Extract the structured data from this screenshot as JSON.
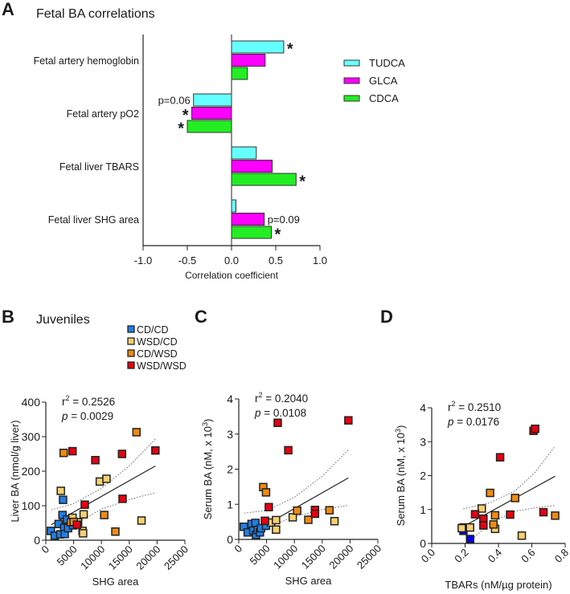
{
  "panels": {
    "A": "A",
    "B": "B",
    "C": "C",
    "D": "D"
  },
  "chart_data": [
    {
      "type": "bar",
      "orientation": "horizontal",
      "title": "Fetal BA correlations",
      "xlabel": "Correlation coefficient",
      "xlim": [
        -1.0,
        1.0
      ],
      "xticks": [
        "-1.0",
        "-0.5",
        "0.0",
        "0.5",
        "1.0"
      ],
      "xtick_values": [
        -1.0,
        -0.5,
        0.0,
        0.5,
        1.0
      ],
      "categories": [
        "Fetal artery hemoglobin",
        "Fetal artery pO2",
        "Fetal liver TBARS",
        "Fetal liver SHG area"
      ],
      "series": [
        {
          "name": "TUDCA",
          "color": "#66ffff",
          "values": [
            0.59,
            -0.43,
            0.28,
            0.05
          ]
        },
        {
          "name": "GLCA",
          "color": "#ff00ff",
          "values": [
            0.38,
            -0.45,
            0.46,
            0.37
          ]
        },
        {
          "name": "CDCA",
          "color": "#22ee22",
          "values": [
            0.18,
            -0.5,
            0.73,
            0.45
          ]
        }
      ],
      "annotations": [
        {
          "category": 0,
          "series": 0,
          "text": "*"
        },
        {
          "category": 1,
          "series": 0,
          "text": "p=0.06"
        },
        {
          "category": 1,
          "series": 1,
          "text": "*"
        },
        {
          "category": 1,
          "series": 2,
          "text": "*"
        },
        {
          "category": 2,
          "series": 2,
          "text": "*"
        },
        {
          "category": 3,
          "series": 1,
          "text": "p=0.09"
        },
        {
          "category": 3,
          "series": 2,
          "text": "*"
        }
      ],
      "legend": "right"
    },
    {
      "type": "scatter",
      "title": "Juveniles",
      "xlabel": "SHG area",
      "ylabel": "Liver BA (nmol/g liver)",
      "xlim": [
        0,
        25000
      ],
      "ylim": [
        0,
        400
      ],
      "xticks": [
        0,
        5000,
        10000,
        15000,
        20000,
        25000
      ],
      "yticks": [
        0,
        100,
        200,
        300,
        400
      ],
      "stats": {
        "r_label": "r",
        "r_sup": "2",
        "r_value": "= 0.2526",
        "p_label": "p",
        "p_value": "= 0.0029"
      },
      "legend_entries": [
        {
          "name": "CD/CD",
          "color": "#1f7fe8"
        },
        {
          "name": "WSD/CD",
          "color": "#f8d070"
        },
        {
          "name": "CD/WSD",
          "color": "#f08a10"
        },
        {
          "name": "WSD/WSD",
          "color": "#e80010"
        }
      ],
      "groups": [
        {
          "name": "CD/CD",
          "color": "#1f7fe8",
          "points": [
            [
              900,
              27
            ],
            [
              1600,
              13
            ],
            [
              2300,
              47
            ],
            [
              2600,
              17
            ],
            [
              3000,
              73
            ],
            [
              3100,
              117
            ],
            [
              3300,
              36
            ],
            [
              3400,
              18
            ],
            [
              3800,
              60
            ],
            [
              4000,
              35
            ],
            [
              4900,
              43
            ]
          ]
        },
        {
          "name": "WSD/CD",
          "color": "#f8d070",
          "points": [
            [
              2700,
              143
            ],
            [
              4800,
              65
            ],
            [
              5800,
              52
            ],
            [
              6600,
              27
            ],
            [
              6700,
              20
            ],
            [
              6800,
              75
            ],
            [
              9700,
              170
            ],
            [
              10900,
              178
            ],
            [
              17200,
              57
            ]
          ]
        },
        {
          "name": "CD/WSD",
          "color": "#f08a10",
          "points": [
            [
              3200,
              253
            ],
            [
              4500,
              52
            ],
            [
              5000,
              53
            ],
            [
              10500,
              73
            ],
            [
              12500,
              25
            ],
            [
              16300,
              313
            ]
          ]
        },
        {
          "name": "WSD/WSD",
          "color": "#e80010",
          "points": [
            [
              4800,
              258
            ],
            [
              5600,
              45
            ],
            [
              7000,
              103
            ],
            [
              8900,
              232
            ],
            [
              13700,
              250
            ],
            [
              13800,
              120
            ],
            [
              19700,
              260
            ]
          ]
        }
      ],
      "fit": [
        [
          1000,
          45
        ],
        [
          19700,
          215
        ]
      ],
      "ci_upper": [
        [
          1000,
          88
        ],
        [
          5000,
          106
        ],
        [
          10000,
          150
        ],
        [
          15000,
          215
        ],
        [
          19700,
          293
        ]
      ],
      "ci_lower": [
        [
          1500,
          5
        ],
        [
          5000,
          45
        ],
        [
          10000,
          90
        ],
        [
          15000,
          118
        ],
        [
          19700,
          138
        ]
      ]
    },
    {
      "type": "scatter",
      "xlabel": "SHG area",
      "ylabel": "Serum BA (nM, x 10",
      "ylabel_sup": "3",
      "ylabel_end": ")",
      "xlim": [
        0,
        25000
      ],
      "ylim": [
        0,
        4
      ],
      "xticks": [
        0,
        5000,
        10000,
        15000,
        20000,
        25000
      ],
      "yticks": [
        0,
        1,
        2,
        3,
        4
      ],
      "stats": {
        "r_label": "r",
        "r_sup": "2",
        "r_value": "= 0.2040",
        "p_label": "p",
        "p_value": "= 0.0108"
      },
      "groups": [
        {
          "name": "CD/CD",
          "color": "#1f7fe8",
          "points": [
            [
              900,
              0.36
            ],
            [
              1600,
              0.2
            ],
            [
              2300,
              0.44
            ],
            [
              2600,
              0.25
            ],
            [
              3000,
              0.47
            ],
            [
              3100,
              0.13
            ],
            [
              3400,
              0.27
            ],
            [
              3800,
              0.2
            ],
            [
              4000,
              0.32
            ],
            [
              4900,
              0.39
            ]
          ]
        },
        {
          "name": "WSD/CD",
          "color": "#f8d070",
          "points": [
            [
              5800,
              0.48
            ],
            [
              6700,
              0.55
            ],
            [
              6700,
              0.28
            ],
            [
              9700,
              0.63
            ],
            [
              17200,
              0.52
            ]
          ]
        },
        {
          "name": "CD/WSD",
          "color": "#f08a10",
          "points": [
            [
              4400,
              1.49
            ],
            [
              4900,
              1.34
            ],
            [
              10500,
              0.82
            ],
            [
              12500,
              0.56
            ],
            [
              16300,
              0.83
            ]
          ]
        },
        {
          "name": "WSD/WSD",
          "color": "#e80010",
          "points": [
            [
              4700,
              0.53
            ],
            [
              5400,
              0.92
            ],
            [
              7000,
              3.32
            ],
            [
              8900,
              2.54
            ],
            [
              13700,
              0.84
            ],
            [
              13700,
              0.73
            ],
            [
              19700,
              3.39
            ]
          ]
        }
      ],
      "fit": [
        [
          3000,
          0.25
        ],
        [
          19700,
          1.75
        ]
      ],
      "ci_upper": [
        [
          1000,
          0.75
        ],
        [
          5000,
          0.82
        ],
        [
          10000,
          1.2
        ],
        [
          15000,
          1.8
        ],
        [
          19700,
          2.55
        ]
      ],
      "ci_lower": [
        [
          3000,
          0.0
        ],
        [
          6000,
          0.4
        ],
        [
          10000,
          0.65
        ],
        [
          15000,
          0.85
        ],
        [
          19700,
          0.97
        ]
      ]
    },
    {
      "type": "scatter",
      "xlabel": "TBARs (nM/µg protein)",
      "ylabel": "Serum BA (nM, x 10",
      "ylabel_sup": "3",
      "ylabel_end": ")",
      "xlim": [
        0,
        0.8
      ],
      "ylim": [
        0,
        4
      ],
      "xticks": [
        "0.0",
        "0.2",
        "0.4",
        "0.6",
        "0.8"
      ],
      "xtick_values": [
        0,
        0.2,
        0.4,
        0.6,
        0.8
      ],
      "yticks": [
        0,
        1,
        2,
        3,
        4
      ],
      "stats": {
        "r_label": "r",
        "r_sup": "2",
        "r_value": "= 0.2510",
        "p_label": "p",
        "p_value": "= 0.0176"
      },
      "groups": [
        {
          "name": "CD/CD",
          "color": "#0000ee",
          "points": [
            [
              0.19,
              0.47
            ],
            [
              0.19,
              0.37
            ],
            [
              0.23,
              0.13
            ]
          ]
        },
        {
          "name": "WSD/CD",
          "color": "#f8d070",
          "points": [
            [
              0.18,
              0.45
            ],
            [
              0.23,
              0.47
            ],
            [
              0.3,
              1.03
            ],
            [
              0.38,
              0.43
            ],
            [
              0.54,
              0.23
            ]
          ]
        },
        {
          "name": "CD/WSD",
          "color": "#f08a10",
          "points": [
            [
              0.35,
              1.49
            ],
            [
              0.37,
              0.56
            ],
            [
              0.38,
              0.83
            ],
            [
              0.5,
              1.34
            ],
            [
              0.74,
              0.82
            ]
          ]
        },
        {
          "name": "WSD/WSD",
          "color": "#e80010",
          "points": [
            [
              0.26,
              0.86
            ],
            [
              0.31,
              0.73
            ],
            [
              0.31,
              0.53
            ],
            [
              0.41,
              2.54
            ],
            [
              0.47,
              0.85
            ],
            [
              0.61,
              3.32
            ],
            [
              0.62,
              3.38
            ],
            [
              0.67,
              0.92
            ]
          ]
        }
      ],
      "fit": [
        [
          0.19,
          0.5
        ],
        [
          0.74,
          1.98
        ]
      ],
      "ci_upper": [
        [
          0.19,
          1.02
        ],
        [
          0.35,
          1.2
        ],
        [
          0.5,
          1.55
        ],
        [
          0.62,
          2.1
        ],
        [
          0.74,
          2.87
        ]
      ],
      "ci_lower": [
        [
          0.23,
          0.07
        ],
        [
          0.35,
          0.6
        ],
        [
          0.5,
          0.95
        ],
        [
          0.62,
          1.05
        ],
        [
          0.74,
          1.12
        ]
      ]
    }
  ]
}
